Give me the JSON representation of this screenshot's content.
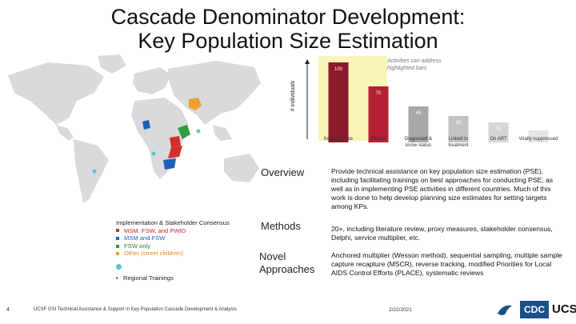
{
  "slide": {
    "title_line1": "Cascade Denominator Development:",
    "title_line2": "Key Population Size Estimation",
    "page_number": "4",
    "footer": "UCSF GSI Technical Assistance & Support in Key Population Cascade Development & Analysis",
    "date": "2/22/2021"
  },
  "chart_data": {
    "type": "bar",
    "ylabel": "# individuals",
    "note": "Activities can address highlighted bars",
    "categories": [
      "Key pop. size",
      "PLHIV",
      "Diagnosed & know status",
      "Linked to treatment",
      "On ART",
      "Virally suppressed"
    ],
    "values": [
      100,
      70,
      45,
      33,
      25,
      15
    ],
    "bar_labels": [
      "100",
      "70",
      "45",
      "33",
      "25",
      "15"
    ],
    "highlighted": [
      0,
      1
    ],
    "colors": [
      "#8b1a2b",
      "#b52034",
      "#a8a8a8",
      "#c3c3c3",
      "#d6d6d6",
      "#e4e4e4"
    ]
  },
  "legend": {
    "heading": "Implementation & Stakeholder Consensus",
    "items": [
      {
        "label": "MSM, FSW, and PWID",
        "color": "#d32f2f"
      },
      {
        "label": "MSM and FSW",
        "color": "#1f5fb4"
      },
      {
        "label": "FSW only",
        "color": "#2e9d3e"
      },
      {
        "label": "Other (street children)",
        "color": "#f0a030"
      }
    ],
    "trainings": "Regional Trainings"
  },
  "rows": [
    {
      "head": "Overview",
      "text": "Provide technical assistance on key population size estimation (PSE), including facilitating trainings on best approaches for conducting PSE, as well as in implementing PSE activities in different countries. Much of this work is done to help develop planning size estimates for setting targets among KPs."
    },
    {
      "head": "Methods",
      "text": "20+, including literature review, proxy measures, stakeholder consensus, Delphi, service multiplier, etc."
    },
    {
      "head": "Novel Approaches",
      "text": "Anchored multiplier (Wesson method), sequential sampling, multiple sample capture recapture (MSCR), reverse tracking, modified Priorities for Local AIDS Control Efforts (PLACE), systematic reviews"
    }
  ],
  "logos": {
    "cdc": "CDC",
    "ucsf": "UCSF"
  }
}
